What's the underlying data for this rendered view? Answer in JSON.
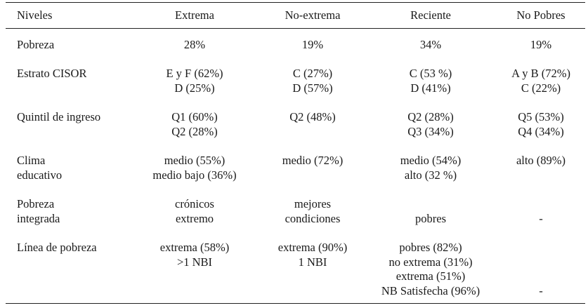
{
  "headers": [
    "Niveles",
    "Extrema",
    "No-extrema",
    "Reciente",
    "No Pobres"
  ],
  "rows": [
    {
      "label": [
        "Pobreza"
      ],
      "cells": [
        [
          "28%"
        ],
        [
          "19%"
        ],
        [
          "34%"
        ],
        [
          "19%"
        ]
      ]
    },
    {
      "label": [
        "Estrato CISOR"
      ],
      "cells": [
        [
          "E y F (62%)",
          "D (25%)"
        ],
        [
          "C (27%)",
          "D (57%)"
        ],
        [
          "C (53 %)",
          "D (41%)"
        ],
        [
          "A y B (72%)",
          "C (22%)"
        ]
      ]
    },
    {
      "label": [
        "Quintil de ingreso"
      ],
      "cells": [
        [
          "Q1 (60%)",
          "Q2 (28%)"
        ],
        [
          "Q2 (48%)"
        ],
        [
          "Q2 (28%)",
          "Q3 (34%)"
        ],
        [
          "Q5 (53%)",
          "Q4 (34%)"
        ]
      ]
    },
    {
      "label": [
        "Clima",
        "educativo"
      ],
      "cells": [
        [
          "medio (55%)",
          "medio bajo (36%)"
        ],
        [
          "medio (72%)"
        ],
        [
          "medio (54%)",
          "alto (32 %)"
        ],
        [
          "alto (89%)"
        ]
      ]
    },
    {
      "label": [
        "Pobreza",
        "integrada"
      ],
      "cells": [
        [
          "crónicos",
          "extremo"
        ],
        [
          "mejores",
          "condiciones"
        ],
        [
          "",
          "pobres"
        ],
        [
          "",
          "-"
        ]
      ]
    },
    {
      "label": [
        "Línea de pobreza"
      ],
      "cells": [
        [
          "extrema (58%)",
          ">1 NBI"
        ],
        [
          "extrema (90%)",
          "1 NBI"
        ],
        [
          "pobres (82%)",
          "no extrema (31%)",
          "extrema (51%)",
          "NB Satisfecha (96%)"
        ],
        [
          "",
          "",
          "",
          "-"
        ]
      ]
    }
  ]
}
